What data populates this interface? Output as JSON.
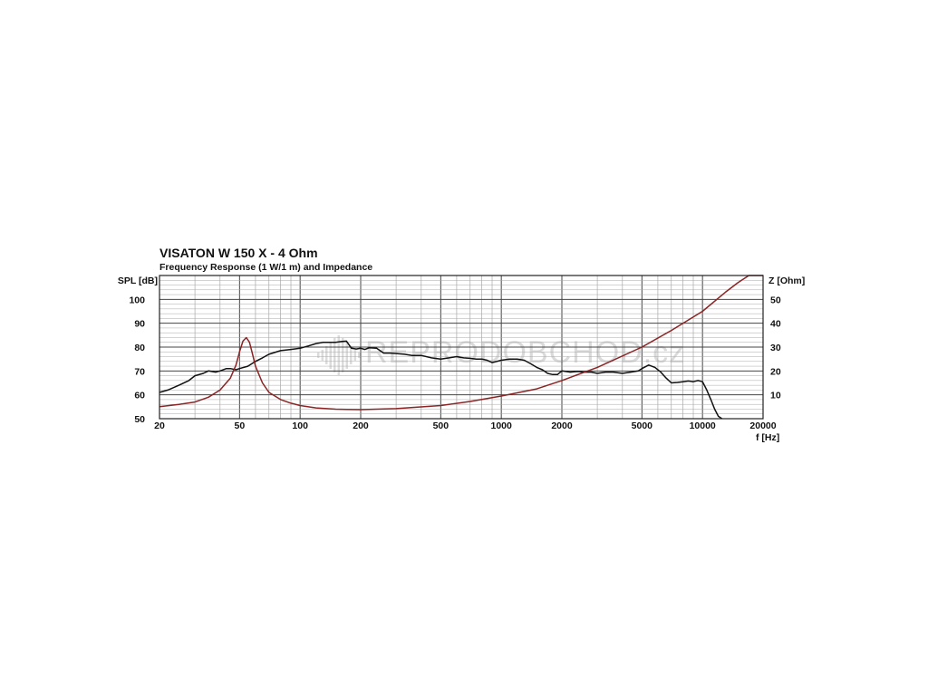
{
  "watermark": "REPRODOBCHOD.cz",
  "chart_data": {
    "type": "line",
    "title": "VISATON W 150 X - 4 Ohm",
    "subtitle": "Frequency Response (1 W/1 m) and Impedance",
    "xlabel": "f [Hz]",
    "ylabel_left": "SPL [dB]",
    "ylabel_right": "Z [Ohm]",
    "x_scale": "log",
    "xlim": [
      20,
      20000
    ],
    "ylim_left": [
      50,
      110
    ],
    "ylim_right": [
      0,
      60
    ],
    "grid": true,
    "x_ticks": [
      20,
      50,
      100,
      200,
      500,
      1000,
      2000,
      5000,
      10000,
      20000
    ],
    "x_tick_labels": [
      "20",
      "50",
      "100",
      "200",
      "500",
      "1000",
      "2000",
      "5000",
      "10000",
      "20000"
    ],
    "y_ticks_left": [
      50,
      60,
      70,
      80,
      90,
      100
    ],
    "y_tick_labels_left": [
      "50",
      "60",
      "70",
      "80",
      "90",
      "100"
    ],
    "y_ticks_right": [
      10,
      20,
      30,
      40,
      50
    ],
    "y_tick_labels_right": [
      "10",
      "20",
      "30",
      "40",
      "50"
    ],
    "series": [
      {
        "axis": "left",
        "color": "#111111",
        "x": [
          20,
          22,
          25,
          28,
          30,
          33,
          35,
          38,
          40,
          43,
          45,
          48,
          50,
          55,
          60,
          65,
          70,
          80,
          90,
          100,
          110,
          120,
          130,
          140,
          150,
          160,
          170,
          180,
          190,
          200,
          210,
          220,
          240,
          260,
          280,
          300,
          330,
          360,
          400,
          450,
          500,
          550,
          600,
          650,
          700,
          750,
          800,
          850,
          900,
          1000,
          1100,
          1200,
          1300,
          1400,
          1500,
          1600,
          1700,
          1800,
          1900,
          2000,
          2200,
          2400,
          2600,
          2800,
          3000,
          3300,
          3600,
          4000,
          4400,
          4800,
          5000,
          5400,
          5800,
          6200,
          6600,
          7000,
          7500,
          8000,
          8500,
          9000,
          9500,
          10000,
          10500,
          11000,
          11500,
          12000,
          12500
        ],
        "y": [
          61,
          62,
          64,
          66,
          68,
          69,
          70,
          69.5,
          70,
          71,
          71,
          70.5,
          71,
          72,
          74,
          75.5,
          77,
          78.5,
          79,
          79.5,
          80.5,
          81.5,
          82,
          82,
          82,
          82.3,
          82.5,
          79.5,
          79.2,
          79.5,
          79,
          79.7,
          79.5,
          77.5,
          77.5,
          77.3,
          77,
          76.5,
          76.5,
          75.5,
          75,
          75.5,
          76,
          75.5,
          75.3,
          75,
          75,
          74.5,
          73.5,
          74.5,
          75,
          75,
          74.5,
          73,
          71.5,
          70.5,
          69,
          68.5,
          68.5,
          70,
          69.5,
          69.8,
          69.5,
          69.5,
          69,
          69.5,
          69.5,
          69,
          69.5,
          70,
          71,
          72.5,
          71.5,
          69.5,
          67,
          65,
          65.2,
          65.5,
          65.8,
          65.5,
          66,
          65.5,
          62,
          58,
          54,
          51,
          49
        ]
      },
      {
        "axis": "right",
        "color": "#8b2424",
        "x": [
          20,
          25,
          30,
          35,
          40,
          45,
          48,
          50,
          52,
          54,
          56,
          58,
          60,
          65,
          70,
          80,
          90,
          100,
          120,
          150,
          200,
          300,
          500,
          700,
          1000,
          1500,
          2000,
          3000,
          5000,
          7000,
          10000,
          13000,
          15000,
          17000,
          20000
        ],
        "y": [
          5,
          6,
          7,
          9,
          12,
          17,
          22.5,
          28,
          32.5,
          34,
          32,
          27,
          22,
          15,
          11,
          8,
          6.5,
          5.5,
          4.5,
          4,
          3.8,
          4.2,
          5.5,
          7.2,
          9.5,
          12.5,
          16,
          21.5,
          30,
          37,
          45,
          53,
          57,
          60,
          60
        ]
      }
    ]
  }
}
